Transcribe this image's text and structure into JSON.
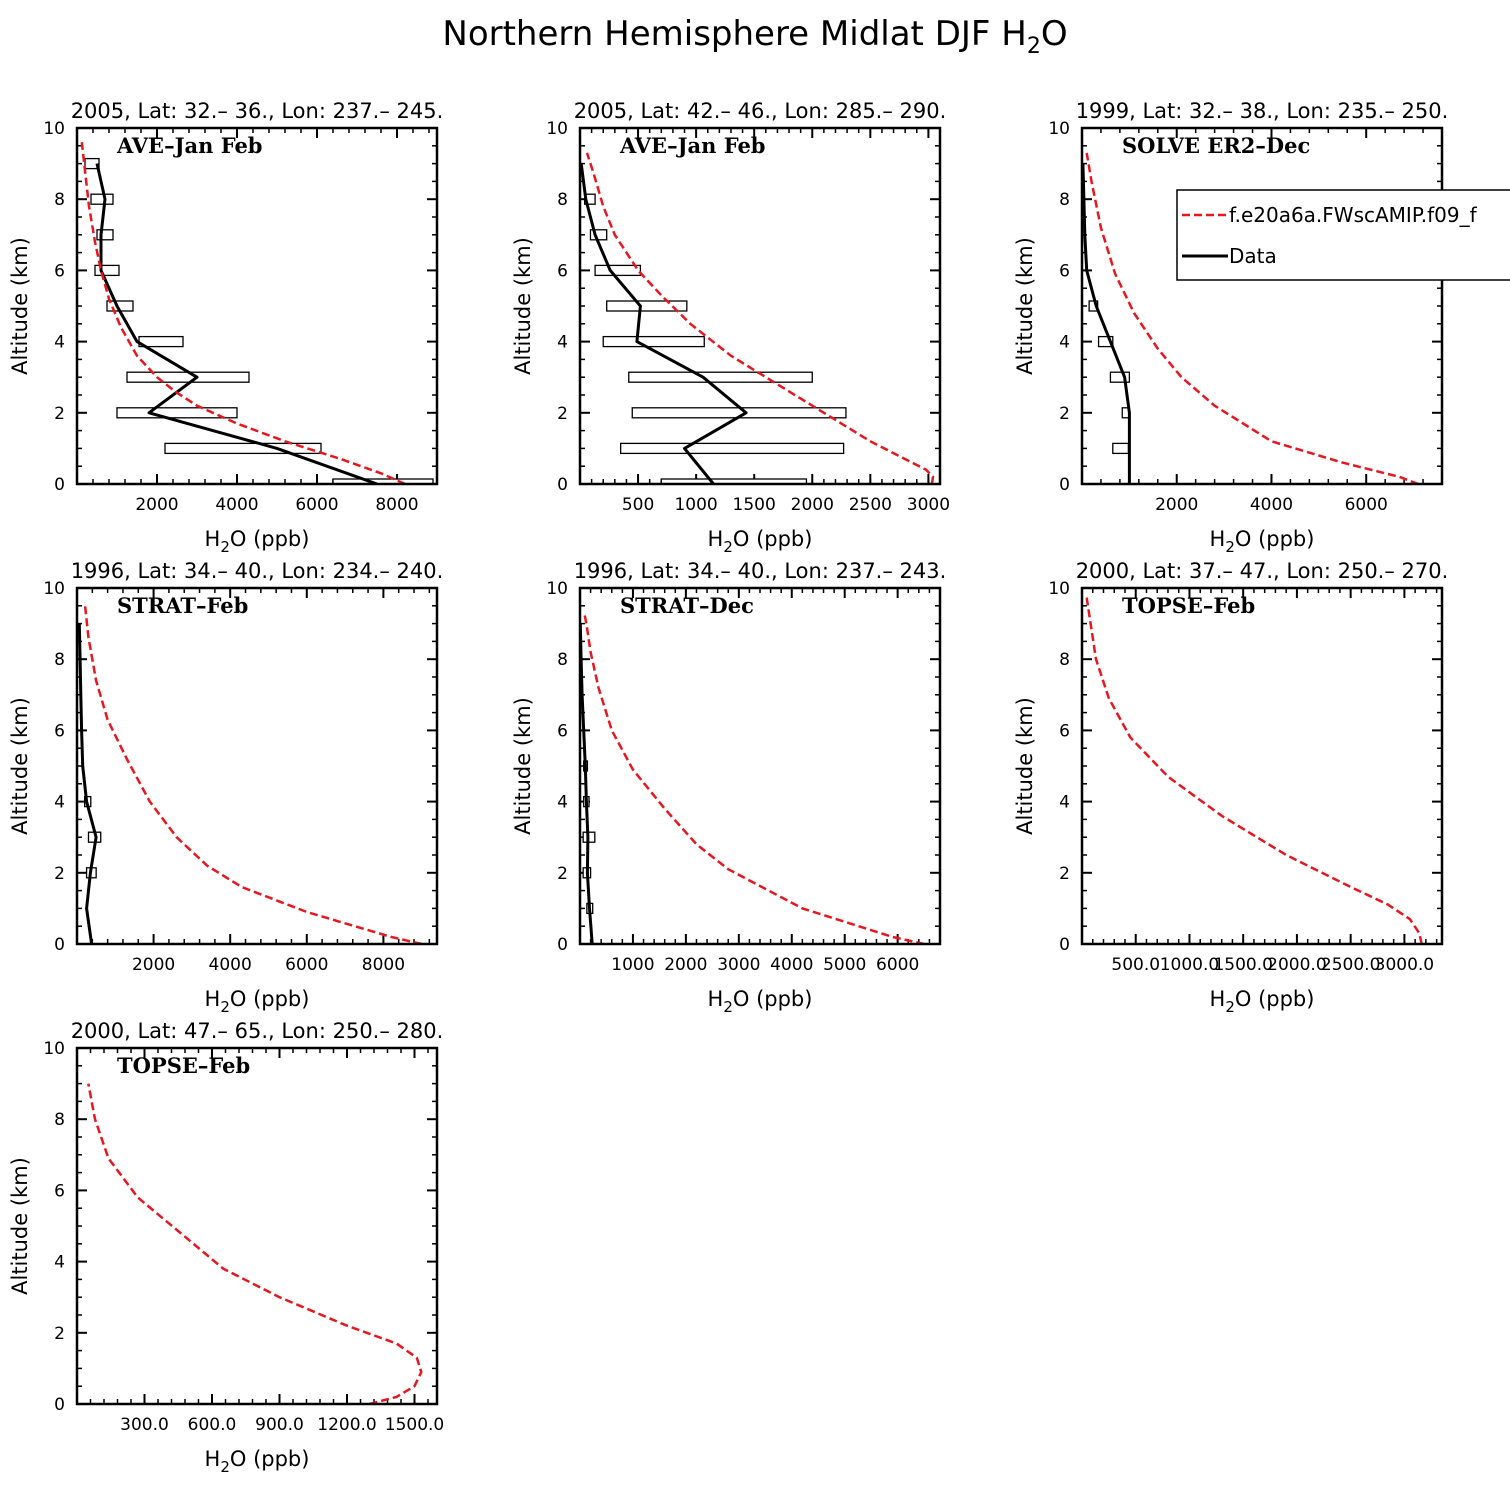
{
  "figure": {
    "title_main": "Northern Hemisphere Midlat DJF H",
    "title_sub": "2",
    "title_end": "O"
  },
  "colors": {
    "model": "#e8161e",
    "data": "#000000"
  },
  "legend": {
    "model_label": "f.e20a6a.FWscAMIP.f09_f",
    "data_label": "Data"
  },
  "axis_text": {
    "ylabel": "Altitude (km)",
    "xlabel_main": "H",
    "xlabel_sub": "2",
    "xlabel_end": "O (ppb)"
  },
  "chart_data": [
    {
      "type": "line",
      "title": "2005, Lat: 32.– 36., Lon: 237.– 245.",
      "label": "AVE–Jan Feb",
      "xlim": [
        0,
        9000
      ],
      "ylim": [
        0,
        10
      ],
      "xticks": [
        2000,
        4000,
        6000,
        8000
      ],
      "xticklabels": [
        "2000",
        "4000",
        "6000",
        "8000"
      ],
      "yticks": [
        0,
        2,
        4,
        6,
        8,
        10
      ],
      "model": {
        "x": [
          8200,
          7600,
          6600,
          5200,
          4000,
          3000,
          2450,
          2000,
          1500,
          1100,
          800,
          600,
          450,
          300,
          200,
          120
        ],
        "y": [
          0,
          0.3,
          0.7,
          1.2,
          1.7,
          2.2,
          2.6,
          3.0,
          3.6,
          4.4,
          5.2,
          6.0,
          6.8,
          7.8,
          8.8,
          9.6
        ]
      },
      "data": {
        "x": [
          7500,
          5000,
          1800,
          3000,
          1500,
          1000,
          600,
          600,
          700,
          500
        ],
        "y": [
          0,
          1,
          2,
          3,
          4,
          5,
          6,
          7,
          8,
          9
        ]
      },
      "boxes": [
        [
          6400,
          8900,
          0
        ],
        [
          2200,
          6100,
          1
        ],
        [
          1000,
          4000,
          2
        ],
        [
          1250,
          4300,
          3
        ],
        [
          1550,
          2650,
          4
        ],
        [
          750,
          1400,
          5
        ],
        [
          450,
          1050,
          6
        ],
        [
          500,
          900,
          7
        ],
        [
          350,
          900,
          8
        ],
        [
          200,
          550,
          9
        ]
      ]
    },
    {
      "type": "line",
      "title": "2005, Lat: 42.– 46., Lon: 285.– 290.",
      "label": "AVE–Jan Feb",
      "xlim": [
        0,
        3100
      ],
      "ylim": [
        0,
        10
      ],
      "xticks": [
        500,
        1000,
        1500,
        2000,
        2500,
        3000
      ],
      "xticklabels": [
        "500",
        "1000",
        "1500",
        "2000",
        "2500",
        "3000"
      ],
      "yticks": [
        0,
        2,
        4,
        6,
        8,
        10
      ],
      "model": {
        "x": [
          3030,
          3040,
          2980,
          2800,
          2500,
          2100,
          1700,
          1300,
          950,
          700,
          500,
          300,
          200,
          120,
          60
        ],
        "y": [
          0,
          0.2,
          0.4,
          0.7,
          1.2,
          2.0,
          2.8,
          3.6,
          4.5,
          5.3,
          6.0,
          7.0,
          7.8,
          8.7,
          9.3
        ]
      },
      "data": {
        "x": [
          1150,
          900,
          1430,
          1060,
          490,
          520,
          260,
          130,
          50,
          10
        ],
        "y": [
          0,
          1,
          2,
          3,
          4,
          5,
          6,
          7,
          8,
          9
        ]
      },
      "boxes": [
        [
          700,
          1950,
          0
        ],
        [
          350,
          2270,
          1
        ],
        [
          450,
          2290,
          2
        ],
        [
          420,
          2000,
          3
        ],
        [
          200,
          1070,
          4
        ],
        [
          230,
          920,
          5
        ],
        [
          130,
          520,
          6
        ],
        [
          90,
          230,
          7
        ],
        [
          40,
          130,
          8
        ]
      ]
    },
    {
      "type": "line",
      "title": "1999, Lat: 32.– 38., Lon: 235.– 250.",
      "label": "SOLVE ER2–Dec",
      "xlim": [
        0,
        7600
      ],
      "ylim": [
        0,
        10
      ],
      "xticks": [
        2000,
        4000,
        6000
      ],
      "xticklabels": [
        "2000",
        "4000",
        "6000"
      ],
      "yticks": [
        0,
        2,
        4,
        6,
        8,
        10
      ],
      "model": {
        "x": [
          7100,
          6700,
          5500,
          4000,
          2800,
          2100,
          1600,
          1100,
          700,
          400,
          200,
          100
        ],
        "y": [
          0,
          0.2,
          0.6,
          1.2,
          2.2,
          3.0,
          3.8,
          4.8,
          5.9,
          7.2,
          8.5,
          9.3
        ]
      },
      "data": {
        "x": [
          1000,
          1000,
          1000,
          900,
          600,
          300,
          100,
          60,
          40,
          20
        ],
        "y": [
          0,
          1,
          2,
          3,
          4,
          5,
          6,
          7,
          8,
          9
        ]
      },
      "boxes": [
        [
          650,
          980,
          1
        ],
        [
          850,
          1000,
          2
        ],
        [
          600,
          1000,
          3
        ],
        [
          350,
          650,
          4
        ],
        [
          150,
          330,
          5
        ]
      ]
    },
    {
      "type": "line",
      "title": "1996, Lat: 34.– 40., Lon: 234.– 240.",
      "label": "STRAT–Feb",
      "xlim": [
        0,
        9400
      ],
      "ylim": [
        0,
        10
      ],
      "xticks": [
        2000,
        4000,
        6000,
        8000
      ],
      "xticklabels": [
        "2000",
        "4000",
        "6000",
        "8000"
      ],
      "yticks": [
        0,
        2,
        4,
        6,
        8,
        10
      ],
      "model": {
        "x": [
          9000,
          8200,
          6000,
          4300,
          3400,
          2600,
          1900,
          1300,
          800,
          500,
          300,
          200
        ],
        "y": [
          0,
          0.2,
          0.9,
          1.6,
          2.2,
          3.0,
          4.0,
          5.2,
          6.3,
          7.4,
          8.6,
          9.6
        ]
      },
      "data": {
        "x": [
          380,
          250,
          350,
          500,
          250,
          150,
          120,
          100,
          80,
          60
        ],
        "y": [
          0,
          1,
          2,
          3,
          4,
          5,
          6,
          7,
          8,
          9
        ]
      },
      "boxes": [
        [
          250,
          500,
          2
        ],
        [
          300,
          620,
          3
        ],
        [
          200,
          360,
          4
        ]
      ]
    },
    {
      "type": "line",
      "title": "1996, Lat: 34.– 40., Lon: 237.– 243.",
      "label": "STRAT–Dec",
      "xlim": [
        0,
        6800
      ],
      "ylim": [
        0,
        10
      ],
      "xticks": [
        1000,
        2000,
        3000,
        4000,
        5000,
        6000
      ],
      "xticklabels": [
        "1000",
        "2000",
        "3000",
        "4000",
        "5000",
        "6000"
      ],
      "yticks": [
        0,
        2,
        4,
        6,
        8,
        10
      ],
      "model": {
        "x": [
          6500,
          5900,
          4200,
          2800,
          2200,
          1600,
          1000,
          600,
          350,
          200,
          120,
          80
        ],
        "y": [
          0,
          0.2,
          1.0,
          2.1,
          2.8,
          3.8,
          4.9,
          6.0,
          7.2,
          8.2,
          9.0,
          9.3
        ]
      },
      "data": {
        "x": [
          230,
          180,
          140,
          150,
          120,
          100,
          70,
          40,
          20,
          5
        ],
        "y": [
          0,
          1,
          2,
          3,
          4,
          5,
          6,
          7,
          8,
          9
        ]
      },
      "boxes": [
        [
          130,
          240,
          1
        ],
        [
          60,
          200,
          2
        ],
        [
          60,
          280,
          3
        ],
        [
          70,
          170,
          4
        ],
        [
          70,
          140,
          5
        ]
      ]
    },
    {
      "type": "line",
      "title": "2000, Lat: 37.– 47., Lon: 250.– 270.",
      "label": "TOPSE–Feb",
      "xlim": [
        0,
        3350
      ],
      "ylim": [
        0,
        10
      ],
      "xticks": [
        500,
        1000,
        1500,
        2000,
        2500,
        3000
      ],
      "xticklabels": [
        "500.0",
        "1000.0",
        "1500.0",
        "2000.0",
        "2500.0",
        "3000.0"
      ],
      "yticks": [
        0,
        2,
        4,
        6,
        8,
        10
      ],
      "model": {
        "x": [
          3160,
          3140,
          3050,
          2850,
          2500,
          1900,
          1300,
          800,
          450,
          250,
          130,
          80,
          40
        ],
        "y": [
          0,
          0.3,
          0.7,
          1.1,
          1.6,
          2.5,
          3.6,
          4.7,
          5.8,
          6.9,
          8.0,
          9.0,
          9.8
        ]
      },
      "data": null,
      "boxes": []
    },
    {
      "type": "line",
      "title": "2000, Lat: 47.– 65., Lon: 250.– 280.",
      "label": "TOPSE–Feb",
      "xlim": [
        0,
        1600
      ],
      "ylim": [
        0,
        10
      ],
      "xticks": [
        300,
        600,
        900,
        1200,
        1500
      ],
      "xticklabels": [
        "300.0",
        "600.0",
        "900.0",
        "1200.0",
        "1500.0"
      ],
      "yticks": [
        0,
        2,
        4,
        6,
        8,
        10
      ],
      "model": {
        "x": [
          1300,
          1420,
          1500,
          1530,
          1510,
          1420,
          1200,
          900,
          650,
          480,
          270,
          140,
          80,
          50
        ],
        "y": [
          0,
          0.2,
          0.5,
          0.9,
          1.3,
          1.7,
          2.2,
          3.0,
          3.8,
          4.7,
          5.8,
          6.9,
          8.0,
          9.0
        ]
      },
      "data": null,
      "boxes": []
    }
  ]
}
